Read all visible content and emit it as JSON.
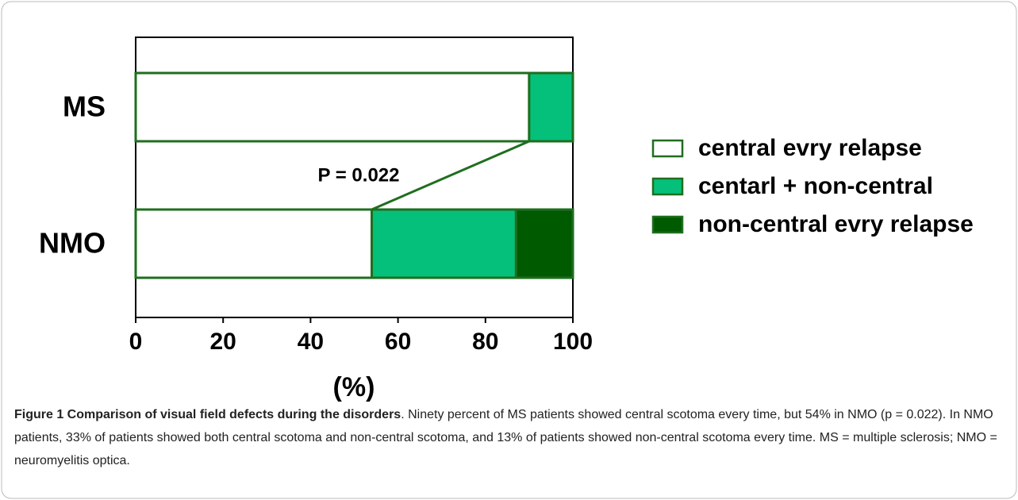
{
  "chart_data": {
    "type": "stacked_barh",
    "categories": [
      "MS",
      "NMO"
    ],
    "series": [
      {
        "name": "central evry relapse",
        "color": "#ffffff",
        "values": [
          90,
          54
        ]
      },
      {
        "name": "centarl + non-central",
        "color": "#05c07a",
        "values": [
          10,
          33
        ]
      },
      {
        "name": "non-central evry relapse",
        "color": "#005a00",
        "values": [
          0,
          13
        ]
      }
    ],
    "xlabel": "(%)",
    "xlim": [
      0,
      100
    ],
    "xticks": [
      0,
      20,
      40,
      60,
      80,
      100
    ],
    "annotation": "P = 0.022",
    "edge_color": "#1f6e1f",
    "legend": "right"
  },
  "caption": {
    "label": "Figure 1 Comparison of visual field defects during the disorders",
    "text": ". Ninety percent of MS patients showed central scotoma every time, but 54% in NMO (p = 0.022). In NMO patients, 33% of patients showed both central scotoma and non-central scotoma, and 13% of patients showed non-central scotoma every time. MS = multiple sclerosis; NMO = neuromyelitis optica."
  }
}
